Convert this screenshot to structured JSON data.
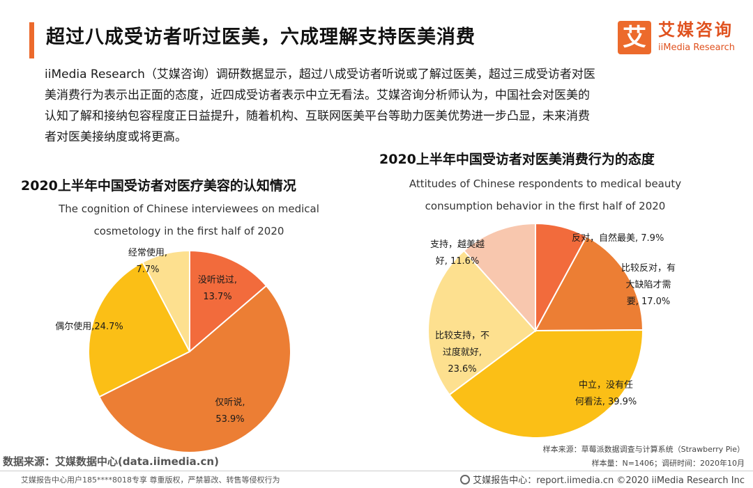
{
  "header": {
    "title": "超过八成受访者听过医美，六成理解支持医美消费",
    "logo_mark": "艾",
    "logo_cn": "艾媒咨询",
    "logo_en": "iiMedia Research"
  },
  "intro": [
    "iiMedia Research（艾媒咨询）调研数据显示，超过八成受访者听说或了解过医美，超过三成受访者对医",
    "美消费行为表示出正面的态度，近四成受访者表示中立无看法。艾媒咨询分析师认为，中国社会对医美的",
    "认知了解和接纳包容程度正日益提升，随着机构、互联网医美平台等助力医美优势进一步凸显，未来消费",
    "者对医美接纳度或将更高。"
  ],
  "chart_data": [
    {
      "type": "pie",
      "title": "2020上半年中国受访者对医疗美容的认知情况",
      "subtitle": [
        "The cognition of Chinese interviewees on medical",
        "cosmetology in the first half of 2020"
      ],
      "slices": [
        {
          "label": [
            "没听说过,",
            "13.7%"
          ],
          "value": 13.7,
          "color": "#f26b3c"
        },
        {
          "label": [
            "仅听说,",
            "53.9%"
          ],
          "value": 53.9,
          "color": "#ec7e34"
        },
        {
          "label": [
            "偶尔使用,24.7%"
          ],
          "value": 24.7,
          "color": "#fbbf16"
        },
        {
          "label": [
            "经常使用,",
            "7.7%"
          ],
          "value": 7.7,
          "color": "#fde08f"
        }
      ]
    },
    {
      "type": "pie",
      "title": "2020上半年中国受访者对医美消费行为的态度",
      "subtitle": [
        "Attitudes of Chinese respondents to medical beauty",
        "consumption behavior in the first half of 2020"
      ],
      "slices": [
        {
          "label": [
            "反对，自然最美, 7.9%"
          ],
          "value": 7.9,
          "color": "#f26b3c"
        },
        {
          "label": [
            "比较反对，有",
            "大缺陷才需",
            "要, 17.0%"
          ],
          "value": 17.0,
          "color": "#ec7e34"
        },
        {
          "label": [
            "中立，没有任",
            "何看法, 39.9%"
          ],
          "value": 39.9,
          "color": "#fbbf16"
        },
        {
          "label": [
            "比较支持，不",
            "过度就好,",
            "23.6%"
          ],
          "value": 23.6,
          "color": "#fde08f"
        },
        {
          "label": [
            "支持，越美越",
            "好, 11.6%"
          ],
          "value": 11.6,
          "color": "#f8c7ae"
        }
      ]
    }
  ],
  "footer": {
    "source_left": "数据来源：艾媒数据中心(data.iimedia.cn)",
    "sample_source": "样本来源：草莓派数据调查与计算系统（Strawberry Pie）",
    "sample_info": "样本量：N=1406；调研时间：2020年10月",
    "copyright_left": "艾媒报告中心用户185****8018专享 尊重版权，严禁篡改、转售等侵权行为",
    "copyright_right": "艾媒报告中心：report.iimedia.cn  ©2020  iiMedia Research  Inc"
  }
}
